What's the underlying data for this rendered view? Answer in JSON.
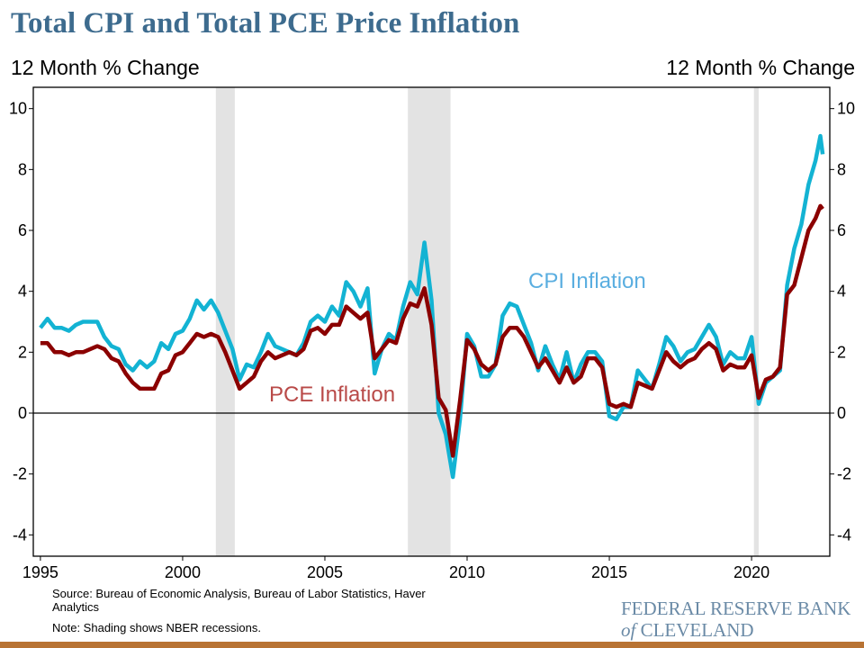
{
  "title": "Total CPI and Total PCE Price Inflation",
  "left_axis_label": "12 Month % Change",
  "right_axis_label": "12 Month % Change",
  "source": "Source: Bureau of Economic Analysis, Bureau of Labor Statistics, Haver Analytics",
  "note": "Note: Shading shows NBER recessions.",
  "logo": {
    "line1": "FEDERAL RESERVE BANK",
    "of": "of",
    "line2": "CLEVELAND"
  },
  "colors": {
    "title": "#3d6b8e",
    "cpi": "#13b3d3",
    "pce": "#8b0000",
    "cpi_label": "#5aaee0",
    "pce_label": "#b94a48",
    "recession": "#e3e3e3",
    "footer_bar": "#b87333"
  },
  "chart_data": {
    "type": "line",
    "title": "Total CPI and Total PCE Price Inflation",
    "ylabel": "12 Month % Change",
    "ylim": [
      -4.7,
      10.7
    ],
    "xlim": [
      "1994-10",
      "2022-10"
    ],
    "yticks": [
      -4,
      -2,
      0,
      2,
      4,
      6,
      8,
      10
    ],
    "xticks": [
      "1995",
      "2000",
      "2005",
      "2010",
      "2015",
      "2020"
    ],
    "grid": false,
    "zero_line": true,
    "recessions": [
      [
        "2001-03",
        "2001-11"
      ],
      [
        "2007-12",
        "2009-06"
      ],
      [
        "2020-02",
        "2020-04"
      ]
    ],
    "x": [
      "1995-01",
      "1995-04",
      "1995-07",
      "1995-10",
      "1996-01",
      "1996-04",
      "1996-07",
      "1996-10",
      "1997-01",
      "1997-04",
      "1997-07",
      "1997-10",
      "1998-01",
      "1998-04",
      "1998-07",
      "1998-10",
      "1999-01",
      "1999-04",
      "1999-07",
      "1999-10",
      "2000-01",
      "2000-04",
      "2000-07",
      "2000-10",
      "2001-01",
      "2001-04",
      "2001-07",
      "2001-10",
      "2002-01",
      "2002-04",
      "2002-07",
      "2002-10",
      "2003-01",
      "2003-04",
      "2003-07",
      "2003-10",
      "2004-01",
      "2004-04",
      "2004-07",
      "2004-10",
      "2005-01",
      "2005-04",
      "2005-07",
      "2005-10",
      "2006-01",
      "2006-04",
      "2006-07",
      "2006-10",
      "2007-01",
      "2007-04",
      "2007-07",
      "2007-10",
      "2008-01",
      "2008-04",
      "2008-07",
      "2008-10",
      "2009-01",
      "2009-04",
      "2009-07",
      "2009-10",
      "2010-01",
      "2010-04",
      "2010-07",
      "2010-10",
      "2011-01",
      "2011-04",
      "2011-07",
      "2011-10",
      "2012-01",
      "2012-04",
      "2012-07",
      "2012-10",
      "2013-01",
      "2013-04",
      "2013-07",
      "2013-10",
      "2014-01",
      "2014-04",
      "2014-07",
      "2014-10",
      "2015-01",
      "2015-04",
      "2015-07",
      "2015-10",
      "2016-01",
      "2016-04",
      "2016-07",
      "2016-10",
      "2017-01",
      "2017-04",
      "2017-07",
      "2017-10",
      "2018-01",
      "2018-04",
      "2018-07",
      "2018-10",
      "2019-01",
      "2019-04",
      "2019-07",
      "2019-10",
      "2020-01",
      "2020-04",
      "2020-07",
      "2020-10",
      "2021-01",
      "2021-04",
      "2021-07",
      "2021-10",
      "2022-01",
      "2022-04",
      "2022-06",
      "2022-07"
    ],
    "series": [
      {
        "name": "CPI Inflation",
        "values": [
          2.8,
          3.1,
          2.8,
          2.8,
          2.7,
          2.9,
          3.0,
          3.0,
          3.0,
          2.5,
          2.2,
          2.1,
          1.6,
          1.4,
          1.7,
          1.5,
          1.7,
          2.3,
          2.1,
          2.6,
          2.7,
          3.1,
          3.7,
          3.4,
          3.7,
          3.3,
          2.7,
          2.1,
          1.1,
          1.6,
          1.5,
          2.0,
          2.6,
          2.2,
          2.1,
          2.0,
          1.9,
          2.3,
          3.0,
          3.2,
          3.0,
          3.5,
          3.2,
          4.3,
          4.0,
          3.5,
          4.1,
          1.3,
          2.1,
          2.6,
          2.4,
          3.5,
          4.3,
          3.9,
          5.6,
          3.7,
          0.0,
          -0.7,
          -2.1,
          -0.2,
          2.6,
          2.2,
          1.2,
          1.2,
          1.6,
          3.2,
          3.6,
          3.5,
          2.9,
          2.3,
          1.4,
          2.2,
          1.6,
          1.1,
          2.0,
          1.0,
          1.6,
          2.0,
          2.0,
          1.7,
          -0.1,
          -0.2,
          0.2,
          0.2,
          1.4,
          1.1,
          0.8,
          1.6,
          2.5,
          2.2,
          1.7,
          2.0,
          2.1,
          2.5,
          2.9,
          2.5,
          1.6,
          2.0,
          1.8,
          1.8,
          2.5,
          0.3,
          1.0,
          1.2,
          1.4,
          4.2,
          5.4,
          6.2,
          7.5,
          8.3,
          9.1,
          8.5
        ]
      },
      {
        "name": "PCE Inflation",
        "values": [
          2.3,
          2.3,
          2.0,
          2.0,
          1.9,
          2.0,
          2.0,
          2.1,
          2.2,
          2.1,
          1.8,
          1.7,
          1.3,
          1.0,
          0.8,
          0.8,
          0.8,
          1.3,
          1.4,
          1.9,
          2.0,
          2.3,
          2.6,
          2.5,
          2.6,
          2.5,
          2.0,
          1.4,
          0.8,
          1.0,
          1.2,
          1.7,
          2.0,
          1.8,
          1.9,
          2.0,
          1.9,
          2.1,
          2.7,
          2.8,
          2.6,
          2.9,
          2.9,
          3.5,
          3.3,
          3.1,
          3.3,
          1.8,
          2.1,
          2.4,
          2.3,
          3.1,
          3.6,
          3.5,
          4.1,
          2.9,
          0.5,
          0.1,
          -1.4,
          0.4,
          2.4,
          2.1,
          1.6,
          1.4,
          1.6,
          2.5,
          2.8,
          2.8,
          2.5,
          2.0,
          1.5,
          1.8,
          1.4,
          1.0,
          1.5,
          1.0,
          1.2,
          1.8,
          1.8,
          1.5,
          0.3,
          0.2,
          0.3,
          0.2,
          1.0,
          0.9,
          0.8,
          1.4,
          2.0,
          1.7,
          1.5,
          1.7,
          1.8,
          2.1,
          2.3,
          2.1,
          1.4,
          1.6,
          1.5,
          1.5,
          1.9,
          0.5,
          1.1,
          1.2,
          1.5,
          3.9,
          4.2,
          5.1,
          6.0,
          6.4,
          6.8,
          6.7
        ]
      }
    ],
    "annotations": [
      "CPI Inflation",
      "PCE Inflation"
    ]
  }
}
